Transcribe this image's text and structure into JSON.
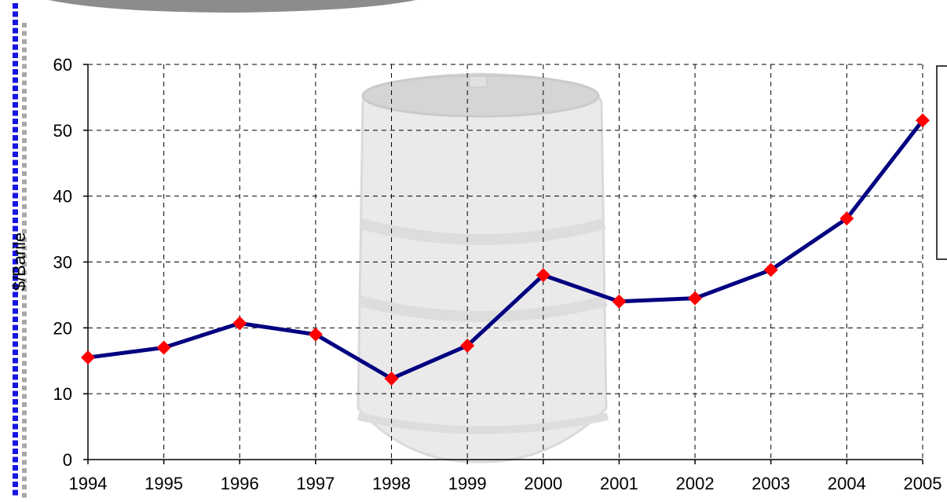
{
  "decor": {
    "square_color_a": "#1515e6",
    "square_color_b": "#a8a8a8",
    "banner_color": "#8c8c8c",
    "barrel_color": "#c7c7c7",
    "legend_box": "bracket-outline"
  },
  "chart_data": {
    "type": "line",
    "title": "",
    "xlabel": "",
    "ylabel": "$/Barile",
    "ylim": [
      0,
      60
    ],
    "yticks": [
      0,
      10,
      20,
      30,
      40,
      50,
      60
    ],
    "grid": true,
    "grid_style": "dashed",
    "line_color": "#000080",
    "marker": "diamond",
    "marker_color": "#ff0000",
    "x": [
      "1994",
      "1995",
      "1996",
      "1997",
      "1998",
      "1999",
      "2000",
      "2001",
      "2002",
      "2003",
      "2004",
      "2005"
    ],
    "series": [
      {
        "values": [
          15.5,
          17.0,
          20.7,
          19.0,
          12.3,
          17.3,
          28.0,
          24.0,
          24.5,
          28.8,
          36.6,
          51.5
        ]
      }
    ]
  }
}
